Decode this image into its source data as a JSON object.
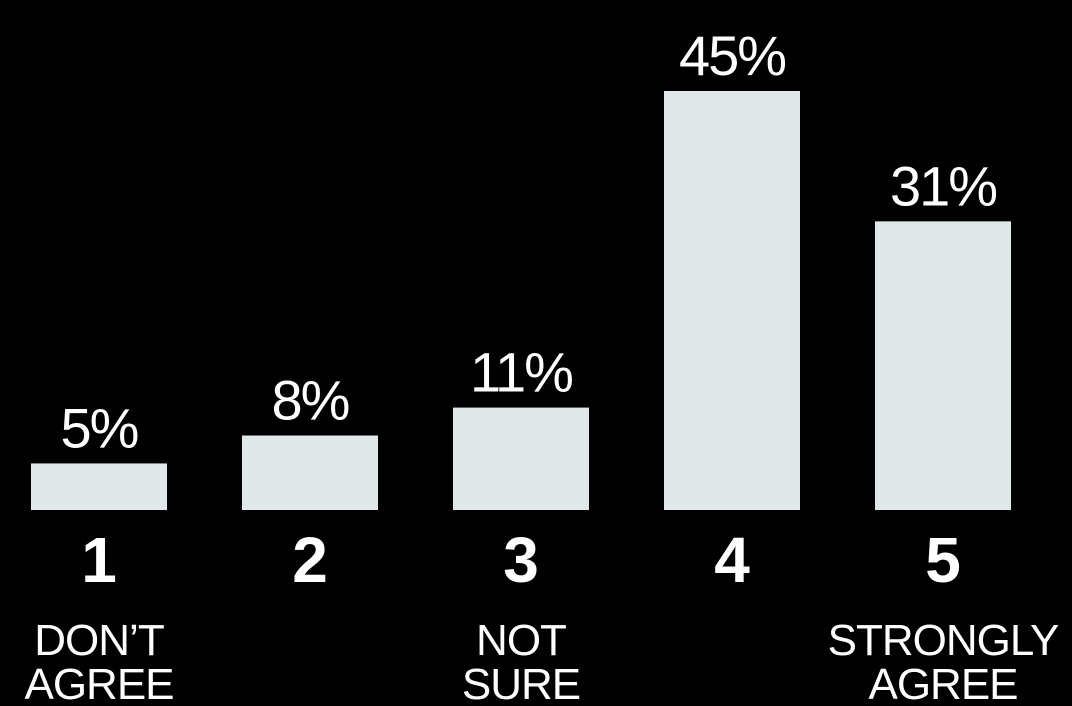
{
  "chart_data": {
    "type": "bar",
    "categories": [
      "1",
      "2",
      "3",
      "4",
      "5"
    ],
    "values": [
      5,
      8,
      11,
      45,
      31
    ],
    "value_labels": [
      "5%",
      "8%",
      "11%",
      "45%",
      "31%"
    ],
    "scale_labels": [
      [
        "DON’T",
        "AGREE"
      ],
      null,
      [
        "NOT",
        "SURE"
      ],
      null,
      [
        "STRONGLY",
        "AGREE"
      ]
    ],
    "color": "#e1e8ea"
  }
}
